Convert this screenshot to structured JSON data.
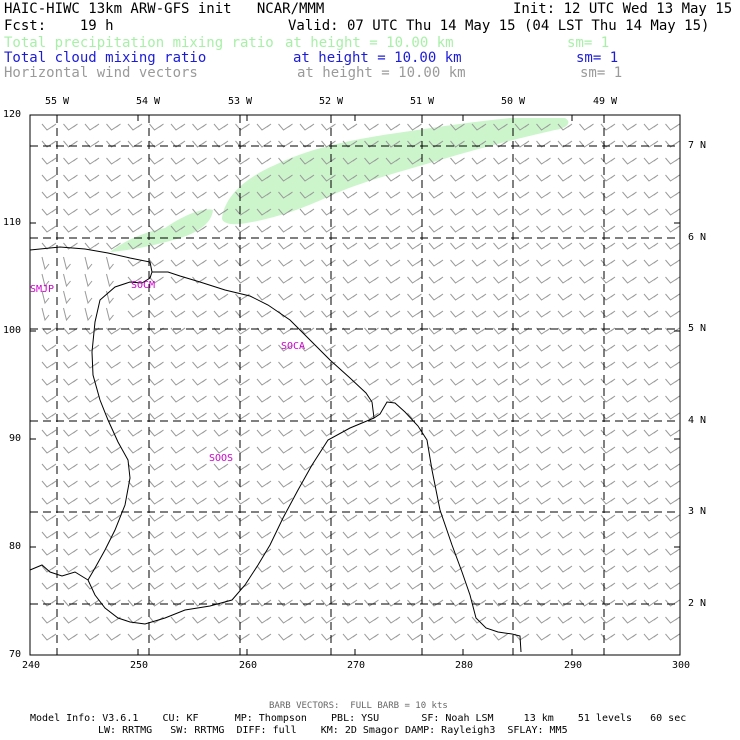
{
  "header": {
    "title": "HAIC-HIWC 13km ARW-GFS init   NCAR/MMM",
    "init": "Init: 12 UTC Wed 13 May 15",
    "fcst": "Fcst:    19 h",
    "valid": "Valid: 07 UTC Thu 14 May 15 (04 LST Thu 14 May 15)",
    "fields": [
      {
        "name": "Total precipitation mixing ratio",
        "level": "at height = 10.00 km",
        "sm": "sm= 1",
        "color": "#a8f0a8"
      },
      {
        "name": "Total cloud mixing ratio",
        "level": "at height = 10.00 km",
        "sm": "sm= 1",
        "color": "#1c1cd8"
      },
      {
        "name": "Horizontal wind vectors",
        "level": "at height = 10.00 km",
        "sm": "sm= 1",
        "color": "#9a9a9a"
      }
    ]
  },
  "axes": {
    "x_ticks": [
      "240",
      "250",
      "260",
      "270",
      "280",
      "290",
      "300"
    ],
    "y_ticks": [
      "70",
      "80",
      "90",
      "100",
      "110",
      "120"
    ],
    "lon_labels": [
      "55 W",
      "54 W",
      "53 W",
      "52 W",
      "51 W",
      "50 W",
      "49 W"
    ],
    "lat_labels": [
      "7 N",
      "6 N",
      "5 N",
      "4 N",
      "3 N",
      "2 N"
    ]
  },
  "region_labels": [
    "SMJP",
    "SOCM",
    "SOCA",
    "SOOS"
  ],
  "footer": {
    "barb_note": "BARB VECTORS:  FULL BARB = 10 kts",
    "model_line1": "Model Info: V3.6.1    CU: KF      MP: Thompson    PBL: YSU       SF: Noah LSM     13 km    51 levels   60 sec",
    "model_line2": "LW: RRTMG   SW: RRTMG  DIFF: full    KM: 2D Smagor DAMP: Rayleigh3  SFLAY: MM5"
  },
  "colors": {
    "precip_fill": "#ccf5cc",
    "barb": "#9a9a9a",
    "region_label": "#cc00cc",
    "coast": "#000000"
  }
}
